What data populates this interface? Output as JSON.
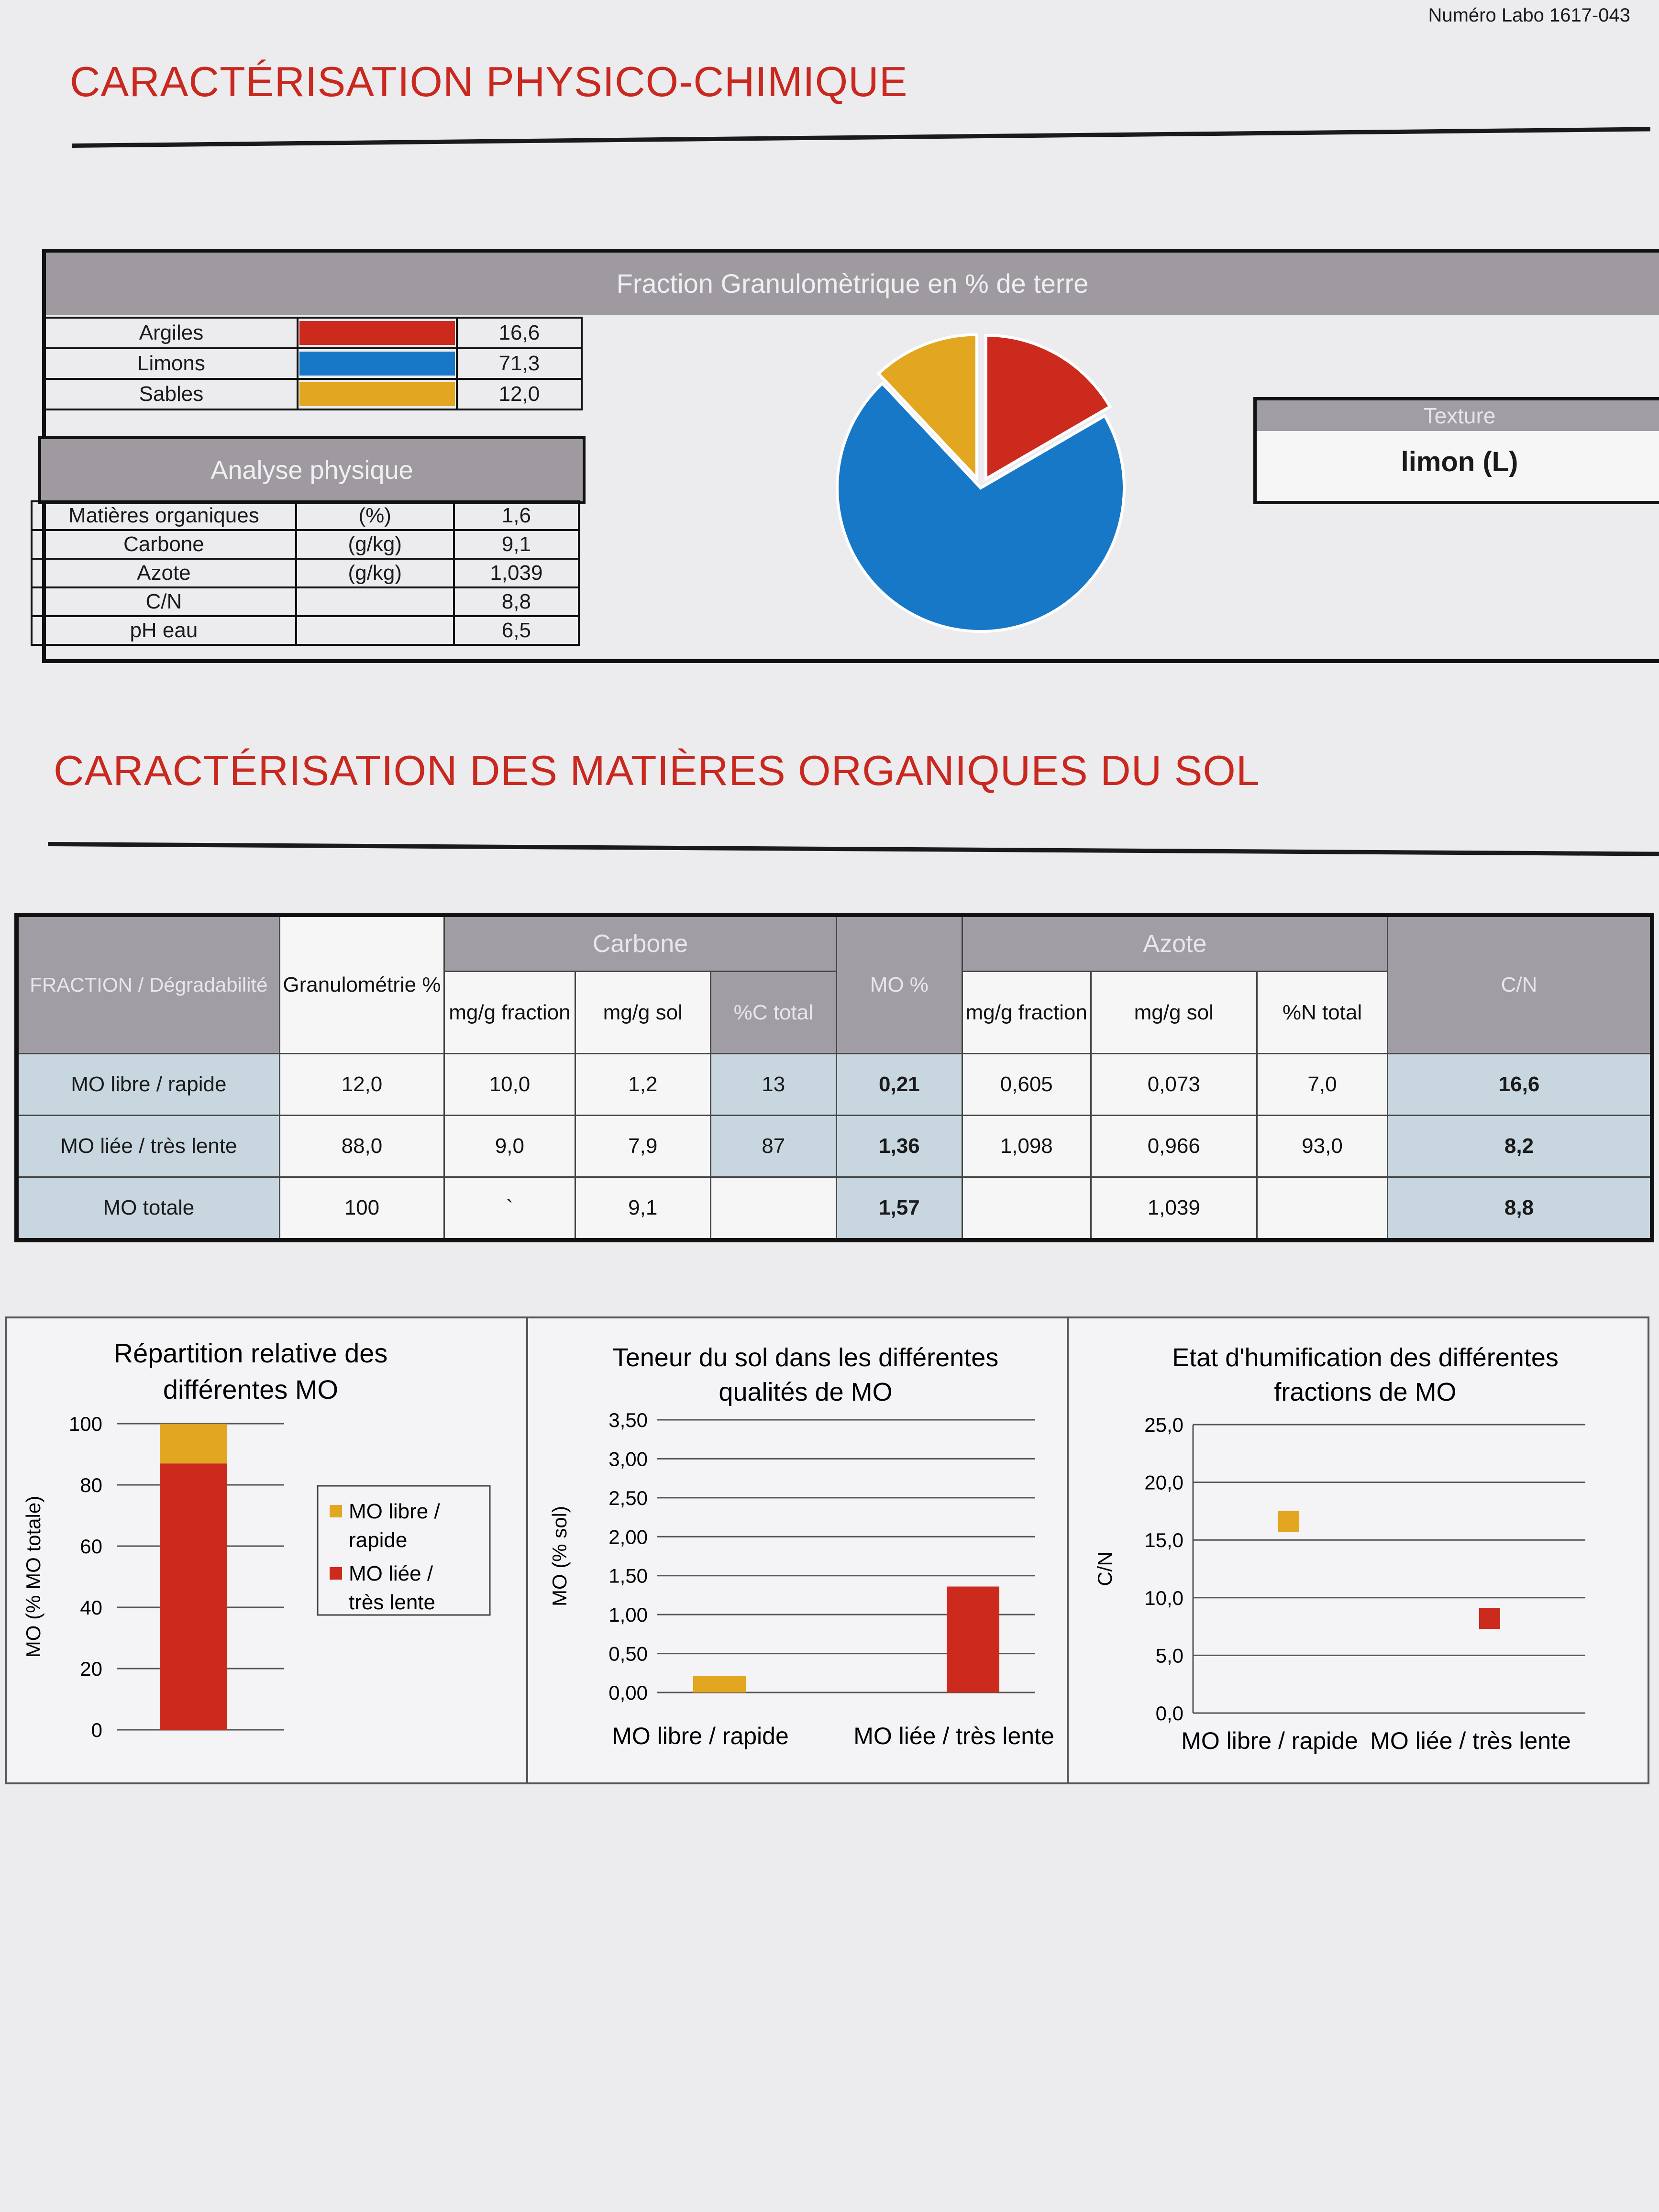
{
  "header": {
    "lab_number": "Numéro Labo 1617-043"
  },
  "section1": {
    "title": "CARACTÉRISATION PHYSICO-CHIMIQUE"
  },
  "granulometry": {
    "title": "Fraction Granulomètrique en % de terre",
    "rows": [
      {
        "label": "Argiles",
        "value": "16,6",
        "color": "#cc2a1c"
      },
      {
        "label": "Limons",
        "value": "71,3",
        "color": "#1878c8"
      },
      {
        "label": "Sables",
        "value": "12,0",
        "color": "#e2a620"
      }
    ]
  },
  "physical": {
    "title": "Analyse physique",
    "rows": [
      {
        "label": "Matières organiques",
        "unit": "(%)",
        "value": "1,6"
      },
      {
        "label": "Carbone",
        "unit": "(g/kg)",
        "value": "9,1"
      },
      {
        "label": "Azote",
        "unit": "(g/kg)",
        "value": "1,039"
      },
      {
        "label": "C/N",
        "unit": "",
        "value": "8,8"
      },
      {
        "label": "pH eau",
        "unit": "",
        "value": "6,5"
      }
    ]
  },
  "texture": {
    "title": "Texture",
    "value": "limon (L)"
  },
  "section2": {
    "title": "CARACTÉRISATION DES MATIÈRES ORGANIQUES DU SOL"
  },
  "mo_table": {
    "h_fraction": "FRACTION / Dégradabilité",
    "h_granulo": "Granulométrie %",
    "h_carbone": "Carbone",
    "h_mgg_fraction_c": "mg/g fraction",
    "h_mgg_sol_c": "mg/g sol",
    "h_pct_c_total": "%C total",
    "h_mo_pct": "MO %",
    "h_azote": "Azote",
    "h_mgg_fraction_n": "mg/g fraction",
    "h_mgg_sol_n": "mg/g sol",
    "h_pct_n_total": "%N total",
    "h_cn": "C/N",
    "rows": [
      {
        "fraction": "MO libre / rapide",
        "granulo": "12,0",
        "c_frac": "10,0",
        "c_sol": "1,2",
        "c_pct": "13",
        "mo": "0,21",
        "n_frac": "0,605",
        "n_sol": "0,073",
        "n_pct": "7,0",
        "cn": "16,6"
      },
      {
        "fraction": "MO liée / très lente",
        "granulo": "88,0",
        "c_frac": "9,0",
        "c_sol": "7,9",
        "c_pct": "87",
        "mo": "1,36",
        "n_frac": "1,098",
        "n_sol": "0,966",
        "n_pct": "93,0",
        "cn": "8,2"
      },
      {
        "fraction": "MO totale",
        "granulo": "100",
        "c_frac": "`",
        "c_sol": "9,1",
        "c_pct": "",
        "mo": "1,57",
        "n_frac": "",
        "n_sol": "1,039",
        "n_pct": "",
        "cn": "8,8"
      }
    ]
  },
  "chart_data": [
    {
      "type": "pie",
      "labels": [
        "Argiles",
        "Limons",
        "Sables"
      ],
      "values": [
        16.6,
        71.3,
        12.0
      ],
      "colors": [
        "#cc2a1c",
        "#1878c8",
        "#e2a620"
      ],
      "exploded": "Argiles, Sables"
    },
    {
      "type": "bar",
      "stacked": true,
      "title": "Répartition relative des différentes MO",
      "ylabel": "MO (% MO totale)",
      "ylim": [
        0,
        100
      ],
      "yticks": [
        "0",
        "20",
        "40",
        "60",
        "80",
        "100"
      ],
      "series": [
        {
          "name": "MO libre / rapide",
          "values": [
            13
          ],
          "color": "#e2a620"
        },
        {
          "name": "MO liée / très lente",
          "values": [
            87
          ],
          "color": "#cc2a1c"
        }
      ],
      "legend": "right",
      "grid": true
    },
    {
      "type": "bar",
      "title": "Teneur du sol dans les différentes qualités de MO",
      "ylabel": "MO (% sol)",
      "categories": [
        "MO libre / rapide",
        "MO liée / très lente"
      ],
      "values": [
        0.21,
        1.36
      ],
      "colors": [
        "#e2a620",
        "#cc2a1c"
      ],
      "ylim": [
        0,
        3.5
      ],
      "yticks": [
        "0,00",
        "0,50",
        "1,00",
        "1,50",
        "2,00",
        "2,50",
        "3,00",
        "3,50"
      ],
      "grid": true
    },
    {
      "type": "scatter",
      "title": "Etat d'humification des différentes fractions de MO",
      "ylabel": "C/N",
      "categories": [
        "MO libre / rapide",
        "MO liée / très lente"
      ],
      "values": [
        16.6,
        8.2
      ],
      "colors": [
        "#e2a620",
        "#cc2a1c"
      ],
      "ylim": [
        0,
        25
      ],
      "yticks": [
        "0,0",
        "5,0",
        "10,0",
        "15,0",
        "20,0",
        "25,0"
      ],
      "grid": true
    }
  ]
}
